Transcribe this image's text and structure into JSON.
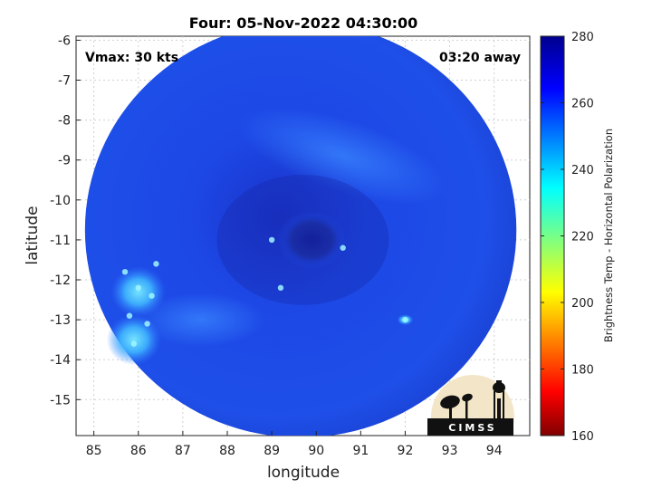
{
  "chart_data": {
    "type": "heatmap",
    "title": "Four: 05-Nov-2022 04:30:00",
    "xlabel": "longitude",
    "ylabel": "latitude",
    "xlim": [
      84.6,
      94.8
    ],
    "ylim": [
      -15.9,
      -5.9
    ],
    "x_ticks": [
      85,
      86,
      87,
      88,
      89,
      90,
      91,
      92,
      93,
      94
    ],
    "y_ticks": [
      -6,
      -7,
      -8,
      -9,
      -10,
      -11,
      -12,
      -13,
      -14,
      -15
    ],
    "grid": true,
    "annotations": {
      "top_left": "Vmax: 30 kts",
      "top_right": "03:20 away"
    },
    "colorbar": {
      "label": "Brightness Temp - Horizontal Polarization",
      "range": [
        160,
        280
      ],
      "ticks": [
        280,
        260,
        240,
        220,
        200,
        180,
        160
      ],
      "colormap": "jet"
    },
    "swath": {
      "center_lon": 89.65,
      "center_lat": -10.75,
      "radius_lon": 4.85,
      "radius_lat": 5.2
    },
    "features": [
      {
        "name": "eye",
        "lon": 89.9,
        "lat": -11.0,
        "value": 266
      },
      {
        "name": "cold-band",
        "lon": 86.0,
        "lat": -12.3,
        "value": 238
      },
      {
        "name": "cold-band",
        "lon": 85.9,
        "lat": -13.5,
        "value": 240
      },
      {
        "name": "cold-spot",
        "lon": 92.0,
        "lat": -13.0,
        "value": 240
      }
    ],
    "logo": "CIMSS"
  }
}
